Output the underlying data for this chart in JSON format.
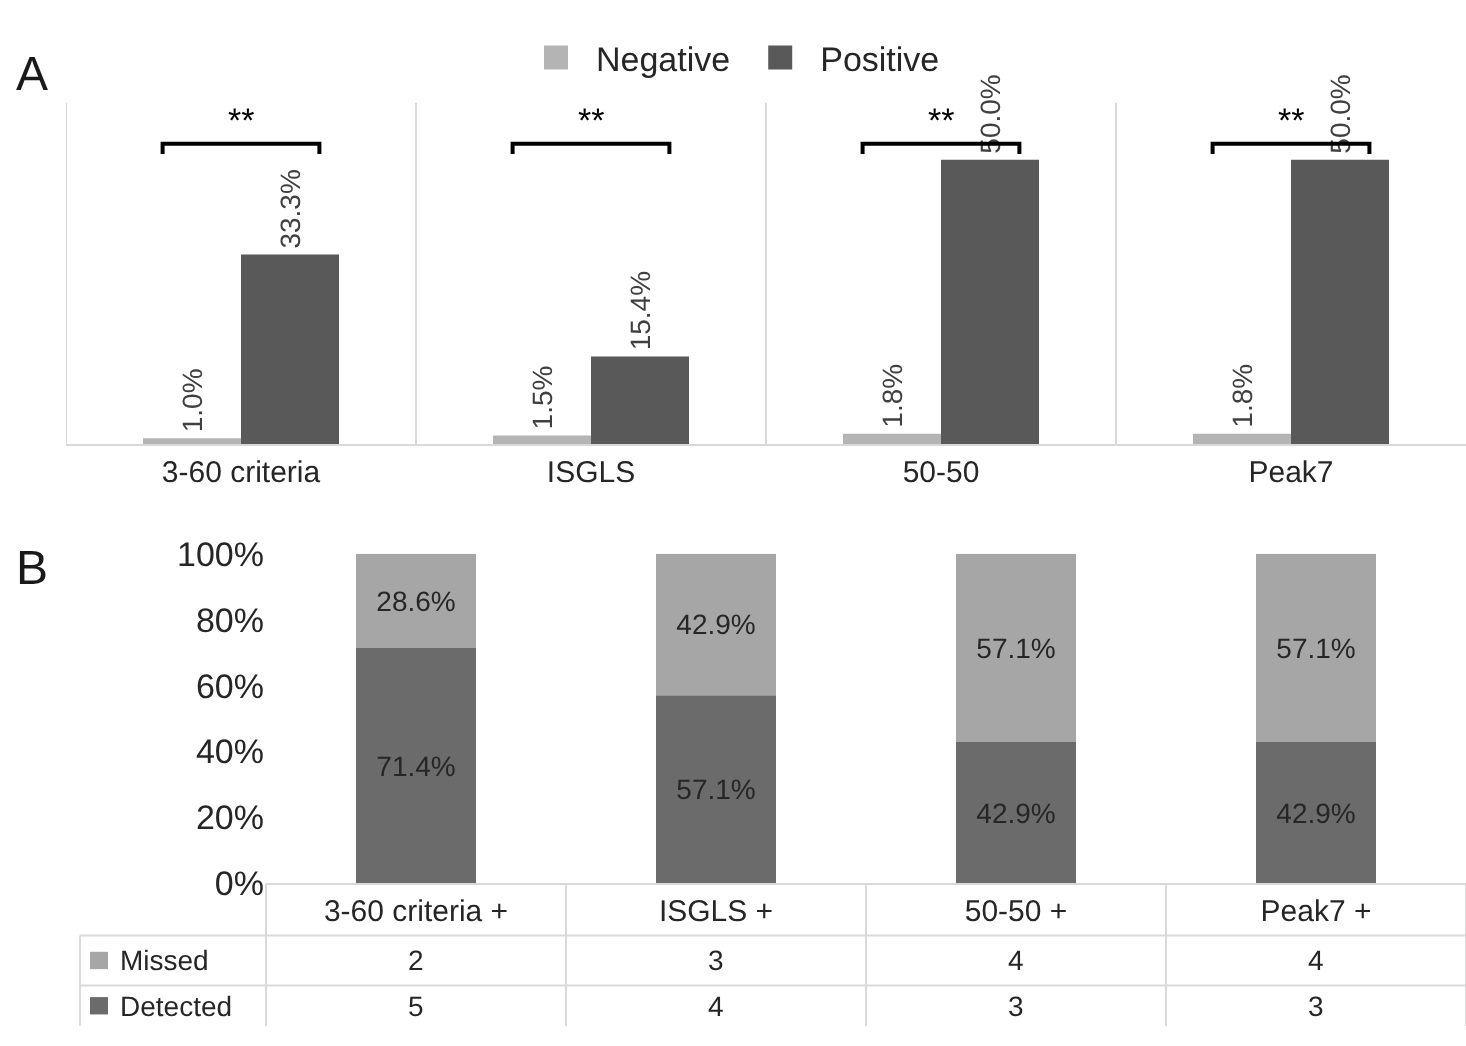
{
  "chart_data": [
    {
      "type": "bar",
      "title": "A",
      "categories": [
        "3-60 criteria",
        "ISGLS",
        "50-50",
        "Peak7"
      ],
      "ylim": [
        0,
        60
      ],
      "tick_labels": "x",
      "grid": "x",
      "legend": "top",
      "series": [
        {
          "name": "Negative",
          "color": "#b4b4b4",
          "values": [
            1.0,
            1.5,
            1.8,
            1.8
          ],
          "value_labels": [
            "1.0%",
            "1.5%",
            "1.8%",
            "1.8%"
          ]
        },
        {
          "name": "Positive",
          "color": "#595959",
          "values": [
            33.3,
            15.4,
            50.0,
            50.0
          ],
          "value_labels": [
            "33.3%",
            "15.4%",
            "50.0%",
            "50.0%"
          ]
        }
      ],
      "annotations": [
        "**",
        "**",
        "**",
        "**"
      ]
    },
    {
      "type": "bar",
      "title": "B",
      "stacked": true,
      "categories": [
        "3-60 criteria +",
        "ISGLS +",
        "50-50 +",
        "Peak7 +"
      ],
      "ylim": [
        0,
        100
      ],
      "yticks": [
        {
          "value": 0,
          "label": "0%"
        },
        {
          "value": 20,
          "label": "20%"
        },
        {
          "value": 40,
          "label": "40%"
        },
        {
          "value": 60,
          "label": "60%"
        },
        {
          "value": 80,
          "label": "80%"
        },
        {
          "value": 100,
          "label": "100%"
        }
      ],
      "series": [
        {
          "color": "#6b6b6b",
          "values": [
            71.4,
            57.1,
            42.9,
            42.9
          ],
          "value_labels": [
            "71.4%",
            "57.1%",
            "42.9%",
            "42.9%"
          ]
        },
        {
          "color": "#a6a6a6",
          "values": [
            28.6,
            42.9,
            57.1,
            57.1
          ],
          "value_labels": [
            "28.6%",
            "42.9%",
            "57.1%",
            "57.1%"
          ]
        }
      ]
    },
    {
      "type": "other",
      "series": [
        {
          "name": "Missed",
          "color": "#a6a6a6"
        },
        {
          "name": "Detected",
          "color": "#6b6b6b"
        }
      ],
      "annotations": [
        "2",
        "3",
        "4",
        "4",
        "5",
        "4",
        "3",
        "3"
      ]
    }
  ]
}
